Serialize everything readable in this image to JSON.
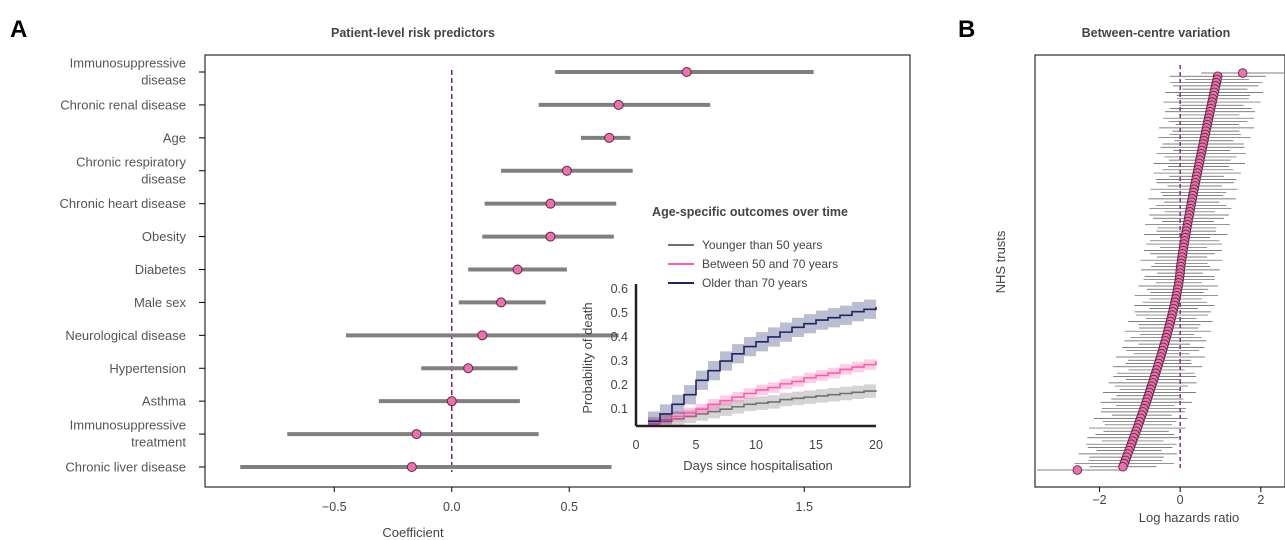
{
  "panels": {
    "a_letter": "A",
    "b_letter": "B"
  },
  "colors": {
    "marker": "#f06fb0",
    "marker_edge": "#5a2a3c",
    "bar": "#808080",
    "zero_line": "#7b0a6e",
    "younger": "#707070",
    "middle": "#ff5aa9",
    "older": "#1e2466"
  },
  "chart_data": [
    {
      "type": "scatter",
      "title": "Patient-level risk predictors",
      "xlabel": "Coefficient",
      "ylabel": "",
      "xlim": [
        -1.05,
        1.95
      ],
      "xticks": [
        -0.5,
        0.0,
        0.5,
        1.5
      ],
      "xtick_labels": [
        "−0.5",
        "0.0",
        "0.5",
        "1.5"
      ],
      "reference_line": 0,
      "grid": false,
      "points": [
        {
          "label": [
            "Immunosuppressive",
            "disease"
          ],
          "estimate": 1.0,
          "low": 0.44,
          "high": 1.54
        },
        {
          "label": [
            "Chronic renal disease"
          ],
          "estimate": 0.71,
          "low": 0.37,
          "high": 1.1
        },
        {
          "label": [
            "Age"
          ],
          "estimate": 0.67,
          "low": 0.55,
          "high": 0.76
        },
        {
          "label": [
            "Chronic respiratory",
            "disease"
          ],
          "estimate": 0.49,
          "low": 0.21,
          "high": 0.77
        },
        {
          "label": [
            "Chronic heart disease"
          ],
          "estimate": 0.42,
          "low": 0.14,
          "high": 0.7
        },
        {
          "label": [
            "Obesity"
          ],
          "estimate": 0.42,
          "low": 0.13,
          "high": 0.69
        },
        {
          "label": [
            "Diabetes"
          ],
          "estimate": 0.28,
          "low": 0.07,
          "high": 0.49
        },
        {
          "label": [
            "Male sex"
          ],
          "estimate": 0.21,
          "low": 0.03,
          "high": 0.4
        },
        {
          "label": [
            "Neurological disease"
          ],
          "estimate": 0.13,
          "low": -0.45,
          "high": 0.71
        },
        {
          "label": [
            "Hypertension"
          ],
          "estimate": 0.07,
          "low": -0.13,
          "high": 0.28
        },
        {
          "label": [
            "Asthma"
          ],
          "estimate": 0.0,
          "low": -0.31,
          "high": 0.29
        },
        {
          "label": [
            "Immunosuppressive",
            "treatment"
          ],
          "estimate": -0.15,
          "low": -0.7,
          "high": 0.37
        },
        {
          "label": [
            "Chronic liver disease"
          ],
          "estimate": -0.17,
          "low": -0.9,
          "high": 0.68
        }
      ]
    },
    {
      "type": "line",
      "title": "Age-specific outcomes over time",
      "xlabel": "Days since hospitalisation",
      "ylabel": "Probability of death",
      "xlim": [
        0,
        20
      ],
      "ylim": [
        0.03,
        0.62
      ],
      "xticks": [
        0,
        5,
        10,
        15,
        20
      ],
      "yticks": [
        0.1,
        0.2,
        0.3,
        0.4,
        0.5,
        0.6
      ],
      "legend_position": "top-left",
      "step": true,
      "series": [
        {
          "name": "Younger than 50 years",
          "color_key": "younger",
          "x": [
            1,
            2,
            3,
            4,
            5,
            6,
            7,
            8,
            9,
            10,
            11,
            12,
            13,
            14,
            15,
            16,
            17,
            18,
            19,
            20
          ],
          "y": [
            0.04,
            0.05,
            0.06,
            0.07,
            0.08,
            0.09,
            0.1,
            0.11,
            0.12,
            0.125,
            0.13,
            0.14,
            0.145,
            0.15,
            0.155,
            0.16,
            0.165,
            0.17,
            0.175,
            0.178
          ],
          "band": 0.028
        },
        {
          "name": "Between 50 and 70 years",
          "color_key": "middle",
          "x": [
            1,
            2,
            3,
            4,
            5,
            6,
            7,
            8,
            9,
            10,
            11,
            12,
            13,
            14,
            15,
            16,
            17,
            18,
            19,
            20
          ],
          "y": [
            0.04,
            0.055,
            0.07,
            0.085,
            0.1,
            0.12,
            0.135,
            0.15,
            0.165,
            0.18,
            0.19,
            0.205,
            0.215,
            0.23,
            0.24,
            0.25,
            0.265,
            0.275,
            0.285,
            0.3
          ],
          "band": 0.022
        },
        {
          "name": "Older than 70 years",
          "color_key": "older",
          "x": [
            1,
            2,
            3,
            4,
            5,
            6,
            7,
            8,
            9,
            10,
            11,
            12,
            13,
            14,
            15,
            16,
            17,
            18,
            19,
            20
          ],
          "y": [
            0.05,
            0.08,
            0.12,
            0.16,
            0.22,
            0.26,
            0.3,
            0.33,
            0.36,
            0.38,
            0.4,
            0.42,
            0.44,
            0.455,
            0.47,
            0.48,
            0.49,
            0.505,
            0.515,
            0.525
          ],
          "band": 0.04
        }
      ]
    },
    {
      "type": "scatter",
      "title": "Between-centre variation",
      "xlabel": "Log hazards ratio",
      "ylabel": "NHS trusts",
      "xlim": [
        -3.6,
        2.6
      ],
      "xticks": [
        -2,
        0,
        2
      ],
      "xtick_labels": [
        "−2",
        "0",
        "2"
      ],
      "reference_line": 0,
      "n_trusts": 124,
      "estimate_range": [
        -2.55,
        1.55
      ]
    }
  ]
}
